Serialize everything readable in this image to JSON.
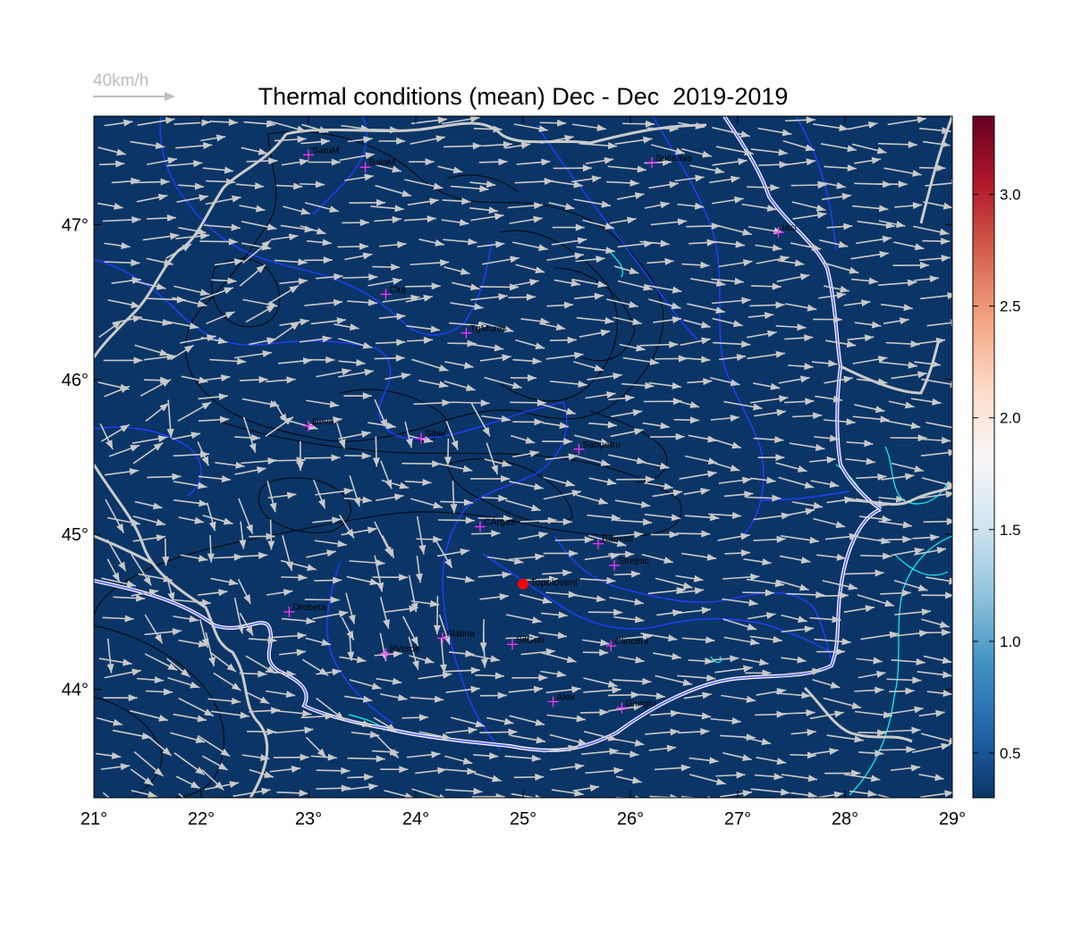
{
  "title": "Thermal conditions (mean) Dec - Dec  2019-2019",
  "wind_scale": {
    "label": "40km/h"
  },
  "map": {
    "lon_range": [
      21,
      29
    ],
    "lat_range": [
      43.3,
      47.7
    ],
    "x_ticks": [
      {
        "value": 21,
        "label": "21°"
      },
      {
        "value": 22,
        "label": "22°"
      },
      {
        "value": 23,
        "label": "23°"
      },
      {
        "value": 24,
        "label": "24°"
      },
      {
        "value": 25,
        "label": "25°"
      },
      {
        "value": 26,
        "label": "26°"
      },
      {
        "value": 27,
        "label": "27°"
      },
      {
        "value": 28,
        "label": "28°"
      },
      {
        "value": 29,
        "label": "29°"
      }
    ],
    "y_ticks": [
      {
        "value": 44,
        "label": "44°"
      },
      {
        "value": 45,
        "label": "45°"
      },
      {
        "value": 46,
        "label": "46°"
      },
      {
        "value": 47,
        "label": "47°"
      }
    ],
    "fill_color": "#0b3566",
    "highlight": {
      "name": "Topoloveni",
      "lon": 25.0,
      "lat": 44.68,
      "color": "#ff0000"
    },
    "cities": [
      {
        "name": "SatuM",
        "lon": 23.0,
        "lat": 47.45
      },
      {
        "name": "BaiaM",
        "lon": 23.53,
        "lat": 47.37
      },
      {
        "name": "Suceava",
        "lon": 26.2,
        "lat": 47.4
      },
      {
        "name": "Iasi",
        "lon": 27.38,
        "lat": 46.95
      },
      {
        "name": "Cluj",
        "lon": 23.72,
        "lat": 46.55
      },
      {
        "name": "TgMures",
        "lon": 24.47,
        "lat": 46.3
      },
      {
        "name": "Deva",
        "lon": 23.0,
        "lat": 45.7
      },
      {
        "name": "Sibiu",
        "lon": 24.05,
        "lat": 45.62
      },
      {
        "name": "Sanpetru",
        "lon": 25.52,
        "lat": 45.55
      },
      {
        "name": "CArges",
        "lon": 24.6,
        "lat": 45.05
      },
      {
        "name": "Banesti",
        "lon": 25.7,
        "lat": 44.94
      },
      {
        "name": "Strejnic",
        "lon": 25.85,
        "lat": 44.8
      },
      {
        "name": "Drobeta",
        "lon": 22.82,
        "lat": 44.5
      },
      {
        "name": "Slatina",
        "lon": 24.25,
        "lat": 44.33
      },
      {
        "name": "SilGuri",
        "lon": 24.9,
        "lat": 44.29
      },
      {
        "name": "Clinceni",
        "lon": 25.82,
        "lat": 44.28
      },
      {
        "name": "BVerde",
        "lon": 23.72,
        "lat": 44.23
      },
      {
        "name": "Alex",
        "lon": 25.28,
        "lat": 43.92
      },
      {
        "name": "Giurgiu",
        "lon": 25.92,
        "lat": 43.88
      }
    ]
  },
  "colorbar": {
    "range": [
      0.3,
      3.35
    ],
    "ticks": [
      {
        "value": 0.5,
        "label": "0.5"
      },
      {
        "value": 1.0,
        "label": "1.0"
      },
      {
        "value": 1.5,
        "label": "1.5"
      },
      {
        "value": 2.0,
        "label": "2.0"
      },
      {
        "value": 2.5,
        "label": "2.5"
      },
      {
        "value": 3.0,
        "label": "3.0"
      }
    ],
    "colors": [
      "#0b3566",
      "#2166ac",
      "#4393c3",
      "#92c5de",
      "#d1e5f0",
      "#f7f7f7",
      "#fddbc7",
      "#f4a582",
      "#d6604d",
      "#b2182b",
      "#67001f"
    ]
  }
}
